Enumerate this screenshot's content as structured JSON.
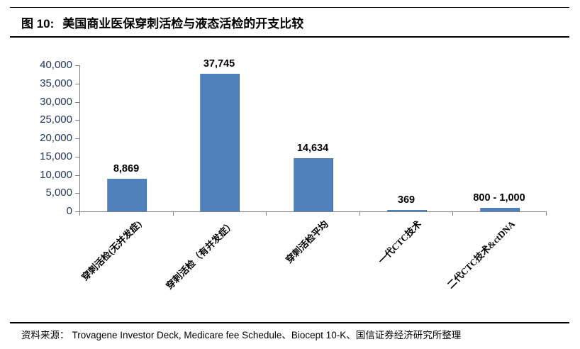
{
  "header": {
    "figure_label": "图 10:",
    "title": "美国商业医保穿刺活检与液态活检的开支比较"
  },
  "chart_data": {
    "type": "bar",
    "title": "美国商业医保穿刺活检与液态活检的开支比较",
    "xlabel": "",
    "ylabel": "",
    "categories": [
      "穿刺活检(无并发症)",
      "穿刺活检（有并发症）",
      "穿刺活检平均",
      "一代CTC技术",
      "二代CTC技术&ctDNA"
    ],
    "values": [
      8869,
      37745,
      14634,
      369,
      900
    ],
    "value_labels": [
      "8,869",
      "37,745",
      "14,634",
      "369",
      "800 - 1,000"
    ],
    "ylim": [
      0,
      40000
    ],
    "ytick_step": 5000,
    "ytick_labels": [
      "0",
      "5,000",
      "10,000",
      "15,000",
      "20,000",
      "25,000",
      "30,000",
      "35,000",
      "40,000"
    ],
    "grid": false,
    "legend": "none",
    "colors": {
      "bar": "#4f81bd",
      "axis": "#7f7f7f",
      "ytick_text": "#25365a"
    }
  },
  "footer": {
    "source_label": "资料来源：",
    "source_text": "Trovagene Investor Deck, Medicare fee Schedule、Biocept 10-K、国信证券经济研究所整理"
  }
}
